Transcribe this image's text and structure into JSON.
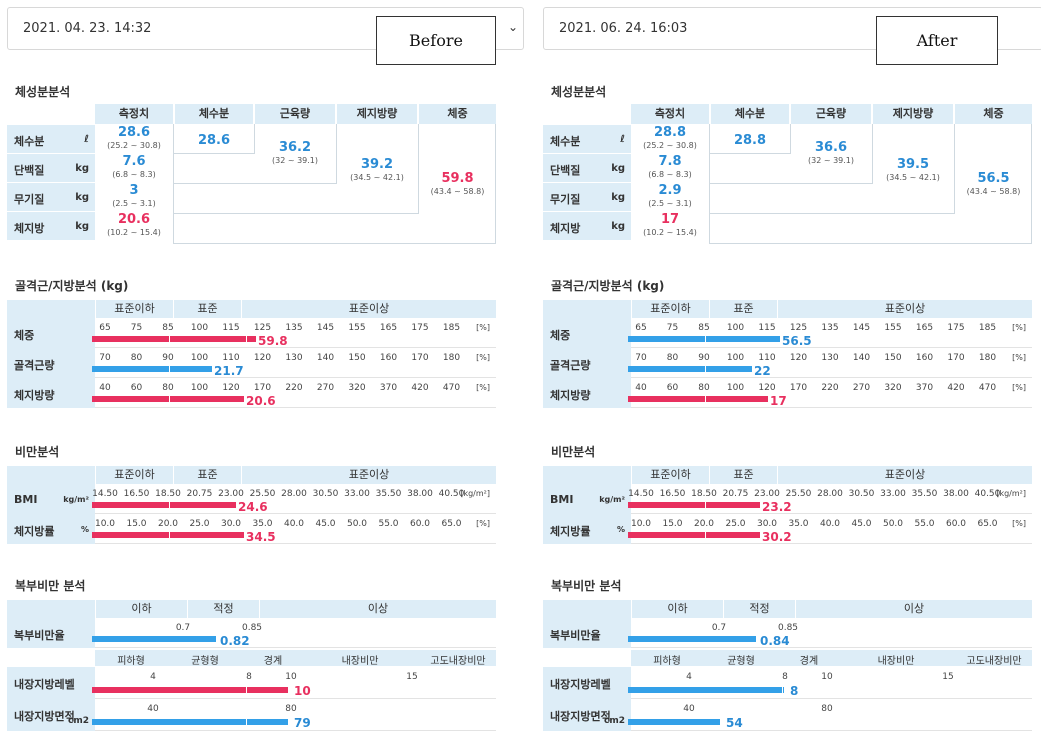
{
  "panels": [
    {
      "date": "2021. 04. 23. 14:32",
      "tag": "Before",
      "composition": {
        "title": "체성분분석",
        "headers": [
          "측정치",
          "체수분",
          "근육량",
          "제지방량",
          "체중"
        ],
        "rows": [
          {
            "name": "체수분",
            "unit": "ℓ",
            "value": "28.6",
            "range": "(25.2 ~ 30.8)",
            "red": false
          },
          {
            "name": "단백질",
            "unit": "kg",
            "value": "7.6",
            "range": "(6.8 ~ 8.3)",
            "red": false
          },
          {
            "name": "무기질",
            "unit": "kg",
            "value": "3",
            "range": "(2.5 ~ 3.1)",
            "red": false
          },
          {
            "name": "체지방",
            "unit": "kg",
            "value": "20.6",
            "range": "(10.2 ~ 15.4)",
            "red": true
          }
        ],
        "water": "28.6",
        "muscle": "36.2",
        "muscle_range": "(32 ~ 39.1)",
        "lean": "39.2",
        "lean_range": "(34.5 ~ 42.1)",
        "weight": "59.8",
        "weight_range": "(43.4 ~ 58.8)",
        "weight_red": true
      },
      "muscle_fat": {
        "title": "골격근/지방분석 (kg)",
        "headers": [
          "표준이하",
          "표준",
          "표준이상"
        ],
        "rows": [
          {
            "name": "체중",
            "ticks": [
              "65",
              "75",
              "85",
              "100",
              "115",
              "125",
              "135",
              "145",
              "155",
              "165",
              "175",
              "185"
            ],
            "unit": "[%]",
            "value": "59.8",
            "fill": 0.41,
            "color": "red"
          },
          {
            "name": "골격근량",
            "ticks": [
              "70",
              "80",
              "90",
              "100",
              "110",
              "120",
              "130",
              "140",
              "150",
              "160",
              "170",
              "180"
            ],
            "unit": "[%]",
            "value": "21.7",
            "fill": 0.3,
            "color": "blue"
          },
          {
            "name": "체지방량",
            "ticks": [
              "40",
              "60",
              "80",
              "100",
              "120",
              "170",
              "220",
              "270",
              "320",
              "370",
              "420",
              "470"
            ],
            "unit": "[%]",
            "value": "20.6",
            "fill": 0.38,
            "color": "red"
          }
        ]
      },
      "obesity": {
        "title": "비만분석",
        "headers": [
          "표준이하",
          "표준",
          "표준이상"
        ],
        "rows": [
          {
            "name": "BMI",
            "sub": "kg/m²",
            "ticks": [
              "14.50",
              "16.50",
              "18.50",
              "20.75",
              "23.00",
              "25.50",
              "28.00",
              "30.50",
              "33.00",
              "35.50",
              "38.00",
              "40.50"
            ],
            "unit": "[kg/m²]",
            "value": "24.6",
            "fill": 0.36,
            "color": "red"
          },
          {
            "name": "체지방률",
            "sub": "%",
            "ticks": [
              "10.0",
              "15.0",
              "20.0",
              "25.0",
              "30.0",
              "35.0",
              "40.0",
              "45.0",
              "50.0",
              "55.0",
              "60.0",
              "65.0"
            ],
            "unit": "[%]",
            "value": "34.5",
            "fill": 0.38,
            "color": "red"
          }
        ]
      },
      "abdominal": {
        "title": "복부비만 분석",
        "headers": [
          "이하",
          "적정",
          "이상"
        ],
        "ratio": {
          "name": "복부비만율",
          "ticks": [
            "0.7",
            "0.85"
          ],
          "value": "0.82",
          "fill": 0.31,
          "color": "blue"
        },
        "subheaders": [
          "피하형",
          "균형형",
          "경계",
          "내장비만",
          "고도내장비만"
        ],
        "rows": [
          {
            "name": "내장지방레벨",
            "sub": "",
            "ticks": [
              "4",
              "8",
              "10",
              "15"
            ],
            "value": "10",
            "fill": 0.49,
            "color": "red"
          },
          {
            "name": "내장지방면적",
            "sub": "cm2",
            "ticks": [
              "40",
              "80"
            ],
            "value": "79",
            "fill": 0.49,
            "color": "blue"
          }
        ]
      }
    },
    {
      "date": "2021. 06. 24. 16:03",
      "tag": "After",
      "composition": {
        "title": "체성분분석",
        "headers": [
          "측정치",
          "체수분",
          "근육량",
          "제지방량",
          "체중"
        ],
        "rows": [
          {
            "name": "체수분",
            "unit": "ℓ",
            "value": "28.8",
            "range": "(25.2 ~ 30.8)",
            "red": false
          },
          {
            "name": "단백질",
            "unit": "kg",
            "value": "7.8",
            "range": "(6.8 ~ 8.3)",
            "red": false
          },
          {
            "name": "무기질",
            "unit": "kg",
            "value": "2.9",
            "range": "(2.5 ~ 3.1)",
            "red": false
          },
          {
            "name": "체지방",
            "unit": "kg",
            "value": "17",
            "range": "(10.2 ~ 15.4)",
            "red": true
          }
        ],
        "water": "28.8",
        "muscle": "36.6",
        "muscle_range": "(32 ~ 39.1)",
        "lean": "39.5",
        "lean_range": "(34.5 ~ 42.1)",
        "weight": "56.5",
        "weight_range": "(43.4 ~ 58.8)",
        "weight_red": false
      },
      "muscle_fat": {
        "title": "골격근/지방분석 (kg)",
        "headers": [
          "표준이하",
          "표준",
          "표준이상"
        ],
        "rows": [
          {
            "name": "체중",
            "ticks": [
              "65",
              "75",
              "85",
              "100",
              "115",
              "125",
              "135",
              "145",
              "155",
              "165",
              "175",
              "185"
            ],
            "unit": "[%]",
            "value": "56.5",
            "fill": 0.38,
            "color": "blue"
          },
          {
            "name": "골격근량",
            "ticks": [
              "70",
              "80",
              "90",
              "100",
              "110",
              "120",
              "130",
              "140",
              "150",
              "160",
              "170",
              "180"
            ],
            "unit": "[%]",
            "value": "22",
            "fill": 0.31,
            "color": "blue"
          },
          {
            "name": "체지방량",
            "ticks": [
              "40",
              "60",
              "80",
              "100",
              "120",
              "170",
              "220",
              "270",
              "320",
              "370",
              "420",
              "470"
            ],
            "unit": "[%]",
            "value": "17",
            "fill": 0.35,
            "color": "red"
          }
        ]
      },
      "obesity": {
        "title": "비만분석",
        "headers": [
          "표준이하",
          "표준",
          "표준이상"
        ],
        "rows": [
          {
            "name": "BMI",
            "sub": "kg/m²",
            "ticks": [
              "14.50",
              "16.50",
              "18.50",
              "20.75",
              "23.00",
              "25.50",
              "28.00",
              "30.50",
              "33.00",
              "35.50",
              "38.00",
              "40.50"
            ],
            "unit": "[kg/m²]",
            "value": "23.2",
            "fill": 0.33,
            "color": "red"
          },
          {
            "name": "체지방률",
            "sub": "%",
            "ticks": [
              "10.0",
              "15.0",
              "20.0",
              "25.0",
              "30.0",
              "35.0",
              "40.0",
              "45.0",
              "50.0",
              "55.0",
              "60.0",
              "65.0"
            ],
            "unit": "[%]",
            "value": "30.2",
            "fill": 0.33,
            "color": "red"
          }
        ]
      },
      "abdominal": {
        "title": "복부비만 분석",
        "headers": [
          "이하",
          "적정",
          "이상"
        ],
        "ratio": {
          "name": "복부비만율",
          "ticks": [
            "0.7",
            "0.85"
          ],
          "value": "0.84",
          "fill": 0.32,
          "color": "blue"
        },
        "subheaders": [
          "피하형",
          "균형형",
          "경계",
          "내장비만",
          "고도내장비만"
        ],
        "rows": [
          {
            "name": "내장지방레벨",
            "sub": "",
            "ticks": [
              "4",
              "8",
              "10",
              "15"
            ],
            "value": "8",
            "fill": 0.39,
            "color": "blue"
          },
          {
            "name": "내장지방면적",
            "sub": "cm2",
            "ticks": [
              "40",
              "80"
            ],
            "value": "54",
            "fill": 0.23,
            "color": "blue"
          }
        ]
      }
    }
  ]
}
